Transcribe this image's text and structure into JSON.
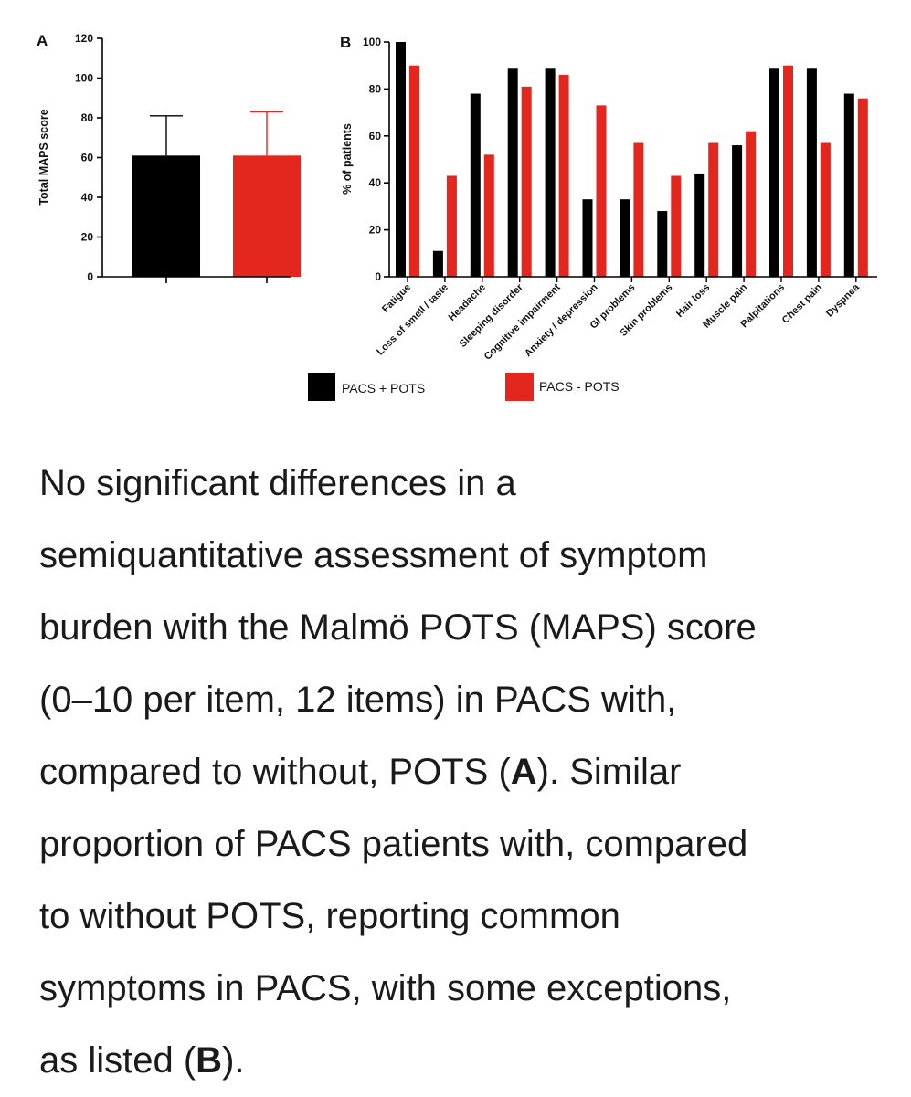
{
  "chart_data": [
    {
      "panel": "A",
      "type": "bar",
      "ylabel": "Total MAPS score",
      "ylim": [
        0,
        120
      ],
      "yticks": [
        0,
        20,
        40,
        60,
        80,
        100,
        120
      ],
      "categories": [
        "PACS + POTS",
        "PACS - POTS"
      ],
      "values": [
        61,
        61
      ],
      "error_upper": [
        81,
        83
      ],
      "colors": [
        "#000000",
        "#e3261e"
      ]
    },
    {
      "panel": "B",
      "type": "bar",
      "ylabel": "% of patients",
      "ylim": [
        0,
        100
      ],
      "yticks": [
        0,
        20,
        40,
        60,
        80,
        100
      ],
      "categories": [
        "Fatigue",
        "Loss of smell / taste",
        "Headache",
        "Sleeping disorder",
        "Cognitive impairment",
        "Anxiety / depression",
        "GI problems",
        "Skin problems",
        "Hair loss",
        "Muscle pain",
        "Palpitations",
        "Chest pain",
        "Dyspnea"
      ],
      "series": [
        {
          "name": "PACS + POTS",
          "color": "#000000",
          "values": [
            100,
            11,
            78,
            89,
            89,
            33,
            33,
            28,
            44,
            56,
            89,
            89,
            78
          ]
        },
        {
          "name": "PACS - POTS",
          "color": "#e3261e",
          "values": [
            90,
            43,
            52,
            81,
            86,
            73,
            57,
            43,
            57,
            62,
            90,
            57,
            76
          ]
        }
      ],
      "legend_position": "bottom"
    }
  ],
  "caption": {
    "line1": "No significant differences in a",
    "line2": "semiquantitative assessment of symptom",
    "line3": "burden with the Malmö POTS (MAPS) score",
    "line4": "(0–10 per item, 12 items) in PACS with,",
    "line5_pre": "compared to without, POTS (",
    "line5_bold": "A",
    "line5_post": "). Similar",
    "line6": "proportion of PACS patients with, compared",
    "line7": "to without POTS, reporting common",
    "line8": "symptoms in PACS, with some exceptions,",
    "line9_pre": "as listed (",
    "line9_bold": "B",
    "line9_post": ")."
  }
}
